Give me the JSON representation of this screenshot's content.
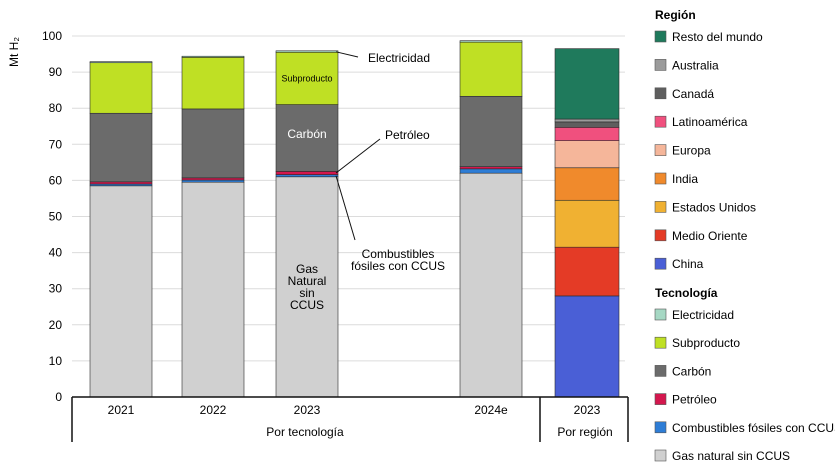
{
  "chart_data": {
    "type": "bar",
    "stacked": true,
    "ylabel": "Mt H₂",
    "ylim": [
      0,
      100
    ],
    "yticks": [
      0,
      10,
      20,
      30,
      40,
      50,
      60,
      70,
      80,
      90,
      100
    ],
    "grid": true,
    "legend_position": "right",
    "groups": [
      {
        "label": "Por tecnología",
        "categories": [
          "2021",
          "2022",
          "2023",
          "2024e"
        ]
      },
      {
        "label": "Por región",
        "categories": [
          "2023"
        ]
      }
    ],
    "technology_series": [
      {
        "name": "Gas natural sin CCUS",
        "color": "#d0d0d0",
        "values": [
          58.5,
          59.5,
          61.0,
          62.0
        ]
      },
      {
        "name": "Combustibles fósiles con CCUS",
        "color": "#2e7dd6",
        "values": [
          0.5,
          0.6,
          0.6,
          1.2
        ]
      },
      {
        "name": "Petróleo",
        "color": "#d4174e",
        "values": [
          0.6,
          0.6,
          0.9,
          0.6
        ]
      },
      {
        "name": "Carbón",
        "color": "#6b6b6b",
        "values": [
          19.0,
          19.1,
          18.5,
          19.5
        ]
      },
      {
        "name": "Subproducto",
        "color": "#bfe024",
        "values": [
          14.0,
          14.3,
          14.5,
          15.0
        ]
      },
      {
        "name": "Electricidad",
        "color": "#a6d8c4",
        "values": [
          0.3,
          0.3,
          0.4,
          0.4
        ]
      }
    ],
    "region_series": [
      {
        "name": "China",
        "color": "#4a5fd6",
        "value": 28.0
      },
      {
        "name": "Medio Oriente",
        "color": "#e43b26",
        "value": 13.5
      },
      {
        "name": "Estados Unidos",
        "color": "#f0b132",
        "value": 13.0
      },
      {
        "name": "India",
        "color": "#f08a2c",
        "value": 9.0
      },
      {
        "name": "Europa",
        "color": "#f5b69a",
        "value": 7.5
      },
      {
        "name": "Latinoamérica",
        "color": "#f0507e",
        "value": 3.7
      },
      {
        "name": "Canadá",
        "color": "#5e5e5e",
        "value": 1.5
      },
      {
        "name": "Australia",
        "color": "#9b9b9b",
        "value": 0.8
      },
      {
        "name": "Resto del mundo",
        "color": "#1f7a5c",
        "value": 19.5
      }
    ],
    "annotations": {
      "electricidad": "Electricidad",
      "subproducto": "Subproducto",
      "carbon": "Carbón",
      "petroleo": "Petróleo",
      "ccus": [
        "Combustibles",
        "fósiles con CCUS"
      ],
      "gas": [
        "Gas",
        "Natural",
        "sin",
        "CCUS"
      ]
    }
  },
  "legend": {
    "region_title": "Región",
    "region_items": [
      {
        "name": "Resto del mundo",
        "color": "#1f7a5c"
      },
      {
        "name": "Australia",
        "color": "#9b9b9b"
      },
      {
        "name": "Canadá",
        "color": "#5e5e5e"
      },
      {
        "name": "Latinoamérica",
        "color": "#f0507e"
      },
      {
        "name": "Europa",
        "color": "#f5b69a"
      },
      {
        "name": "India",
        "color": "#f08a2c"
      },
      {
        "name": "Estados Unidos",
        "color": "#f0b132"
      },
      {
        "name": "Medio Oriente",
        "color": "#e43b26"
      },
      {
        "name": "China",
        "color": "#4a5fd6"
      }
    ],
    "tech_title": "Tecnología",
    "tech_items": [
      {
        "name": "Electricidad",
        "color": "#a6d8c4"
      },
      {
        "name": "Subproducto",
        "color": "#bfe024"
      },
      {
        "name": "Carbón",
        "color": "#6b6b6b"
      },
      {
        "name": "Petróleo",
        "color": "#d4174e"
      },
      {
        "name": "Combustibles fósiles con CCUS",
        "color": "#2e7dd6"
      },
      {
        "name": "Gas natural sin CCUS",
        "color": "#d0d0d0"
      }
    ]
  }
}
